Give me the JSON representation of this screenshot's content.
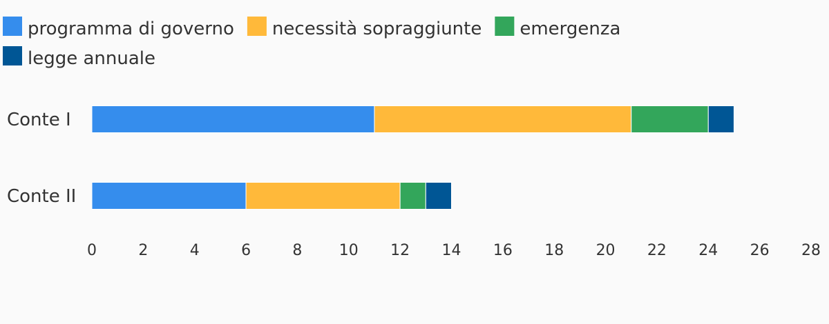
{
  "chart_data": {
    "type": "bar",
    "orientation": "horizontal",
    "stacked": true,
    "title": "",
    "xlabel": "",
    "ylabel": "",
    "categories": [
      "Conte I",
      "Conte II"
    ],
    "series": [
      {
        "name": "programma di governo",
        "color": "#358ded",
        "values": [
          11,
          6
        ]
      },
      {
        "name": "necessità sopraggiunte",
        "color": "#ffb93a",
        "values": [
          10,
          6
        ]
      },
      {
        "name": "emergenza",
        "color": "#33a65b",
        "values": [
          3,
          1
        ]
      },
      {
        "name": "legge annuale",
        "color": "#005695",
        "values": [
          1,
          1
        ]
      }
    ],
    "xlim": [
      0,
      28
    ],
    "xticks": [
      0,
      2,
      4,
      6,
      8,
      10,
      12,
      14,
      16,
      18,
      20,
      22,
      24,
      26,
      28
    ],
    "grid": false,
    "legend_position": "top-left"
  }
}
